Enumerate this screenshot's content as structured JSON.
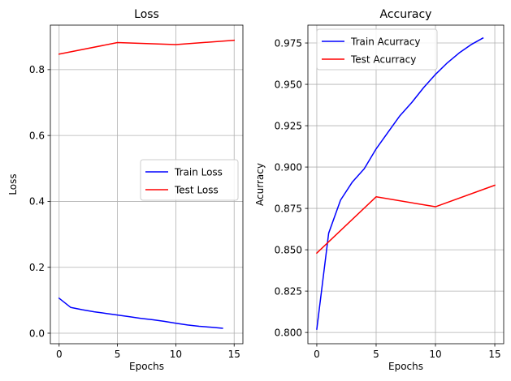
{
  "chart_data": [
    {
      "type": "line",
      "title": "Loss",
      "xlabel": "Epochs",
      "ylabel": "Loss",
      "xlim": [
        -0.75,
        15.75
      ],
      "ylim": [
        -0.032,
        0.935
      ],
      "xticks": [
        0,
        5,
        10,
        15
      ],
      "yticks": [
        0.0,
        0.2,
        0.4,
        0.6,
        0.8
      ],
      "ytick_labels": [
        "0.0",
        "0.2",
        "0.4",
        "0.6",
        "0.8"
      ],
      "grid": true,
      "legend_position": "center-right",
      "series": [
        {
          "name": "Train Loss",
          "color": "#0000ff",
          "x": [
            0,
            1,
            2,
            3,
            4,
            5,
            6,
            7,
            8,
            9,
            10,
            11,
            12,
            13,
            14
          ],
          "y": [
            0.106,
            0.078,
            0.071,
            0.065,
            0.06,
            0.055,
            0.05,
            0.045,
            0.041,
            0.036,
            0.03,
            0.025,
            0.021,
            0.018,
            0.015
          ]
        },
        {
          "name": "Test Loss",
          "color": "#ff0000",
          "x": [
            0,
            5,
            10,
            15
          ],
          "y": [
            0.847,
            0.882,
            0.876,
            0.889
          ]
        }
      ]
    },
    {
      "type": "line",
      "title": "Accuracy",
      "xlabel": "Epochs",
      "ylabel": "Acurracy",
      "xlim": [
        -0.75,
        15.75
      ],
      "ylim": [
        0.7932,
        0.9858
      ],
      "xticks": [
        0,
        5,
        10,
        15
      ],
      "yticks": [
        0.8,
        0.825,
        0.85,
        0.875,
        0.9,
        0.925,
        0.95,
        0.975
      ],
      "ytick_labels": [
        "0.800",
        "0.825",
        "0.850",
        "0.875",
        "0.900",
        "0.925",
        "0.950",
        "0.975"
      ],
      "grid": true,
      "legend_position": "upper-left",
      "series": [
        {
          "name": "Train Acurracy",
          "color": "#0000ff",
          "x": [
            0,
            1,
            2,
            3,
            4,
            5,
            6,
            7,
            8,
            9,
            10,
            11,
            12,
            13,
            14
          ],
          "y": [
            0.802,
            0.86,
            0.88,
            0.891,
            0.899,
            0.911,
            0.921,
            0.931,
            0.939,
            0.948,
            0.956,
            0.963,
            0.969,
            0.974,
            0.978
          ]
        },
        {
          "name": "Test Acurracy",
          "color": "#ff0000",
          "x": [
            0,
            5,
            10,
            15
          ],
          "y": [
            0.848,
            0.882,
            0.876,
            0.889
          ]
        }
      ]
    }
  ]
}
